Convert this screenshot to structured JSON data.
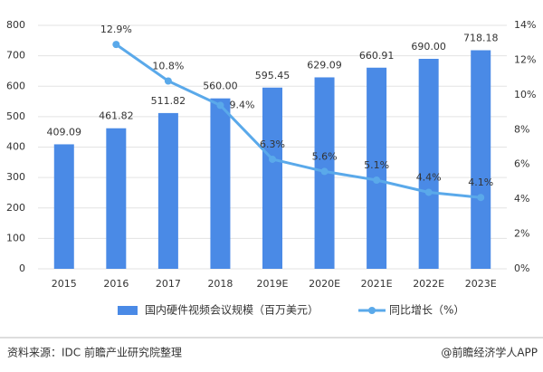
{
  "chart_data": {
    "type": "bar_line",
    "categories": [
      "2015",
      "2016",
      "2017",
      "2018",
      "2019E",
      "2020E",
      "2021E",
      "2022E",
      "2023E"
    ],
    "series": [
      {
        "name": "国内硬件视频会议规模（百万美元）",
        "color": "#4a8ae6",
        "type": "bar",
        "values": [
          409.09,
          461.82,
          511.82,
          560,
          595.45,
          629.09,
          660.91,
          690,
          718.18
        ],
        "value_labels": [
          "409.09",
          "461.82",
          "511.82",
          "560.00",
          "595.45",
          "629.09",
          "660.91",
          "690.00",
          "718.18"
        ]
      },
      {
        "name": "同比增长（%）",
        "color": "#5aa9ea",
        "type": "line",
        "axis": "y2",
        "values": [
          null,
          12.9,
          10.8,
          9.4,
          6.3,
          5.6,
          5.1,
          4.4,
          4.1
        ],
        "value_labels": [
          null,
          "12.9%",
          "10.8%",
          "9.4%",
          "6.3%",
          "5.6%",
          "5.1%",
          "4.4%",
          "4.1%"
        ]
      }
    ],
    "ylim": [
      0,
      800
    ],
    "yticks": [
      0,
      100,
      200,
      300,
      400,
      500,
      600,
      700,
      800
    ],
    "y2lim": [
      0,
      14
    ],
    "y2ticks": [
      {
        "value": 0,
        "label": "0%"
      },
      {
        "value": 2,
        "label": "2%"
      },
      {
        "value": 4,
        "label": "4%"
      },
      {
        "value": 6,
        "label": "6%"
      },
      {
        "value": 8,
        "label": "8%"
      },
      {
        "value": 10,
        "label": "10%"
      },
      {
        "value": 12,
        "label": "12%"
      },
      {
        "value": 14,
        "label": "14%"
      }
    ],
    "grid": true,
    "legend": "bottom",
    "source": "资料来源：IDC 前瞻产业研究院整理",
    "credit": "@前瞻经济学人APP"
  }
}
